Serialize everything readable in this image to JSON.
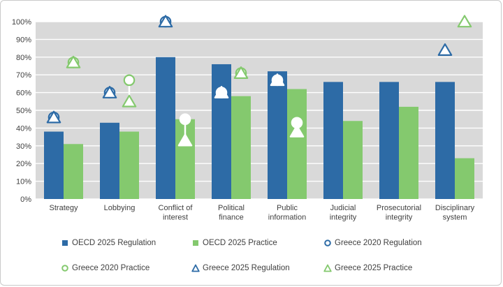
{
  "chart_data": {
    "type": "bar",
    "title": "",
    "categories": [
      "Strategy",
      "Lobbying",
      "Conflict of interest",
      "Political finance",
      "Public information",
      "Judicial integrity",
      "Prosecutorial integrity",
      "Disciplinary system"
    ],
    "category_label_lines": [
      [
        "Strategy"
      ],
      [
        "Lobbying"
      ],
      [
        "Conflict of",
        "interest"
      ],
      [
        "Political",
        "finance"
      ],
      [
        "Public",
        "information"
      ],
      [
        "Judicial",
        "integrity"
      ],
      [
        "Prosecutorial",
        "integrity"
      ],
      [
        "Disciplinary",
        "system"
      ]
    ],
    "ylim": [
      0,
      100
    ],
    "y_ticks": [
      "0%",
      "10%",
      "20%",
      "30%",
      "40%",
      "50%",
      "60%",
      "70%",
      "80%",
      "90%",
      "100%"
    ],
    "grid": "horizontal-white-on-grey",
    "legend_position": "bottom",
    "series": [
      {
        "name": "OECD 2025 Regulation",
        "kind": "bar",
        "column": "regulation",
        "color": "#2d6ba6",
        "values": [
          38,
          43,
          80,
          76,
          72,
          66,
          66,
          66
        ]
      },
      {
        "name": "OECD 2025 Practice",
        "kind": "bar",
        "column": "practice",
        "color": "#84c96e",
        "values": [
          31,
          38,
          45,
          58,
          62,
          44,
          52,
          23
        ]
      },
      {
        "name": "Greece 2020 Regulation",
        "kind": "circle",
        "column": "regulation",
        "color": "#2d6ba6",
        "values": [
          46,
          60,
          100,
          60,
          67,
          null,
          null,
          null
        ]
      },
      {
        "name": "Greece 2020 Practice",
        "kind": "circle",
        "column": "practice",
        "color": "#84c96e",
        "values": [
          77,
          67,
          45,
          71,
          43,
          null,
          null,
          null
        ]
      },
      {
        "name": "Greece 2025 Regulation",
        "kind": "triangle",
        "column": "regulation",
        "color": "#2d6ba6",
        "values": [
          46,
          60,
          100,
          60,
          67,
          null,
          null,
          84
        ]
      },
      {
        "name": "Greece 2025 Practice",
        "kind": "triangle",
        "column": "practice",
        "color": "#84c96e",
        "values": [
          77,
          55,
          33,
          71,
          38,
          null,
          null,
          100
        ]
      }
    ],
    "colors": {
      "regulation_blue": "#2d6ba6",
      "practice_green": "#84c96e",
      "plot_background": "#d9d9d9",
      "gridline": "#ffffff",
      "marker_fill": "#ffffff",
      "text": "#404040",
      "figure_border": "#c9c9c9"
    }
  }
}
